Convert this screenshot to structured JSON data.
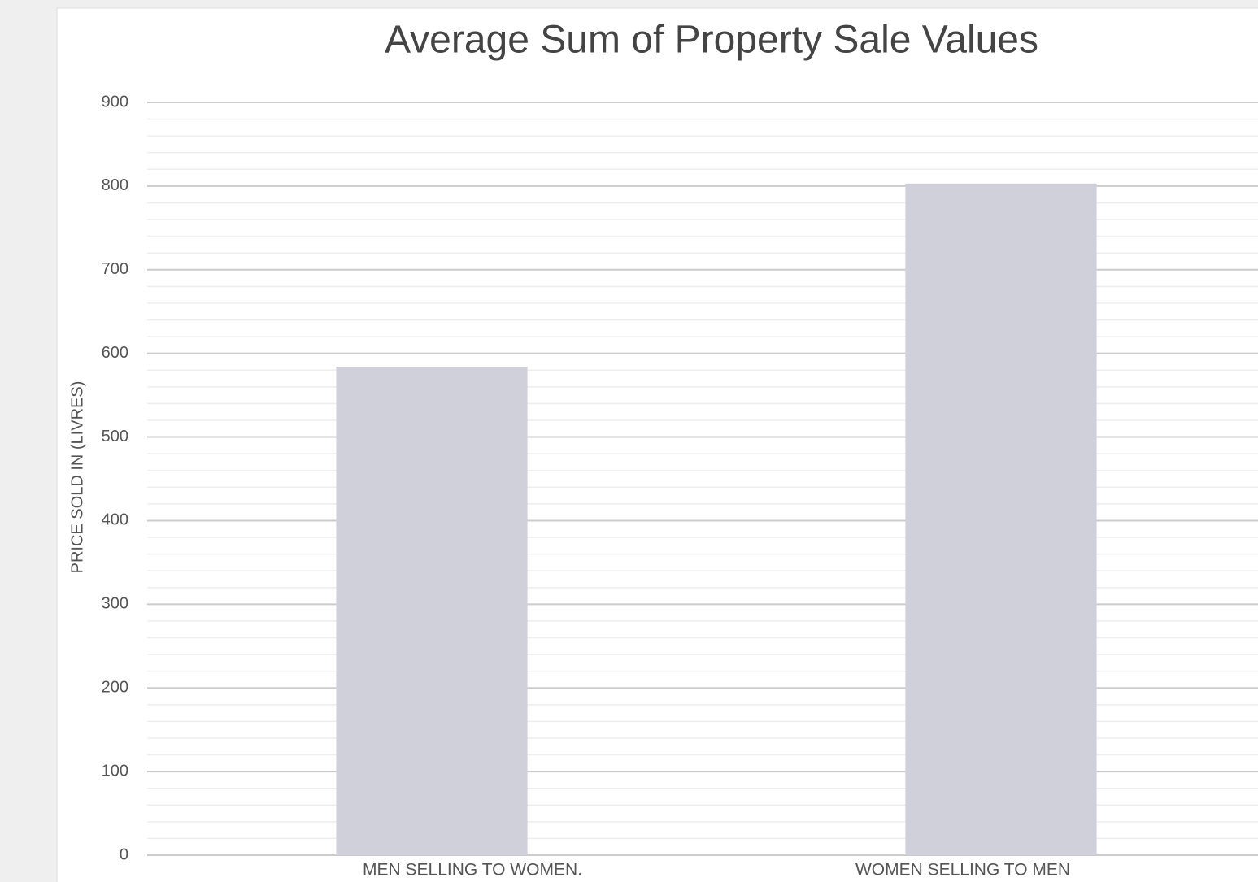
{
  "chart_data": {
    "type": "bar",
    "title": "Average Sum of Property Sale Values",
    "y_label": "PRICE SOLD IN (LIVRES)",
    "categories": [
      "MEN SELLING TO WOMEN.",
      "WOMEN SELLING TO MEN"
    ],
    "values": [
      584,
      803
    ],
    "color": "#d0d0da",
    "ylim": [
      0,
      900
    ],
    "yticks": [
      0,
      100,
      200,
      300,
      400,
      500,
      600,
      700,
      800,
      900
    ],
    "grid": true,
    "minor_grid_divisions": 5
  }
}
